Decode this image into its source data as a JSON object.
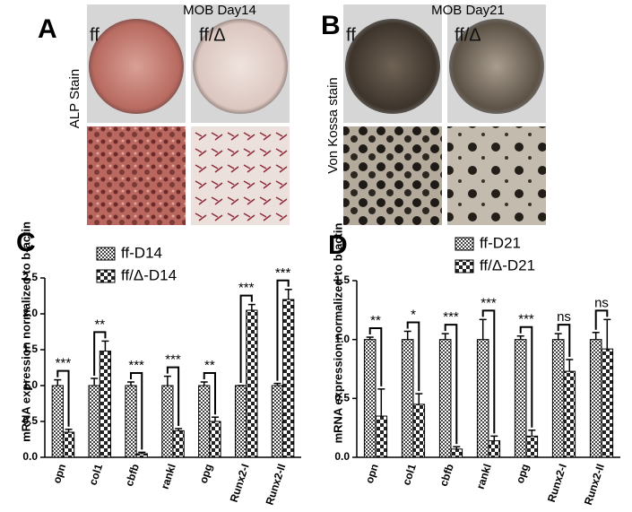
{
  "panels": [
    {
      "label": "A",
      "title": "MOB Day14",
      "left": "ff",
      "right": "ff/Δ",
      "side": "ALP Stain"
    },
    {
      "label": "B",
      "title": "MOB Day21",
      "left": "ff",
      "right": "ff/Δ",
      "side": "Von Kossa stain"
    }
  ],
  "chart_data": [
    {
      "type": "bar",
      "label": "C",
      "ylabel": "mRNA expression normalized to b-actin",
      "categories": [
        "opn",
        "col1",
        "cbfb",
        "rankl",
        "opg",
        "Runx2-I",
        "Runx2-II"
      ],
      "series": [
        {
          "name": "ff-D14",
          "values": [
            1.0,
            1.0,
            1.0,
            1.0,
            1.0,
            1.0,
            1.0
          ],
          "errors": [
            0.08,
            0.1,
            0.05,
            0.13,
            0.05,
            0.0,
            0.03
          ]
        },
        {
          "name": "ff/Δ-D14",
          "values": [
            0.35,
            1.48,
            0.05,
            0.37,
            0.5,
            2.05,
            2.2
          ],
          "errors": [
            0.04,
            0.14,
            0.02,
            0.03,
            0.06,
            0.08,
            0.14
          ]
        }
      ],
      "significance": [
        "***",
        "**",
        "***",
        "***",
        "**",
        "***",
        "***"
      ],
      "ylim": [
        0,
        2.5
      ],
      "yticks": [
        {
          "value": 0,
          "label": "0.0"
        },
        0.5,
        {
          "value": 1,
          "label": "1.0"
        },
        1.5,
        {
          "value": 2,
          "label": "2.0"
        },
        2.5
      ]
    },
    {
      "type": "bar",
      "label": "D",
      "ylabel": "mRNA expression normalized to b-actin",
      "categories": [
        "opn",
        "col1",
        "cbfb",
        "rankl",
        "opg",
        "Runx2-I",
        "Runx2-II"
      ],
      "series": [
        {
          "name": "ff-D21",
          "values": [
            1.0,
            1.0,
            1.0,
            1.0,
            1.0,
            1.0,
            1.0
          ],
          "errors": [
            0.02,
            0.07,
            0.05,
            0.17,
            0.03,
            0.05,
            0.06
          ]
        },
        {
          "name": "ff/Δ-D21",
          "values": [
            0.35,
            0.45,
            0.07,
            0.14,
            0.18,
            0.73,
            0.92
          ],
          "errors": [
            0.23,
            0.09,
            0.02,
            0.04,
            0.05,
            0.1,
            0.25
          ]
        }
      ],
      "significance": [
        "**",
        "*",
        "***",
        "***",
        "***",
        "ns",
        "ns"
      ],
      "ylim": [
        0,
        1.5
      ],
      "yticks": [
        {
          "value": 0,
          "label": "0.0"
        },
        0.5,
        {
          "value": 1,
          "label": "1.0"
        },
        1.5
      ]
    }
  ]
}
